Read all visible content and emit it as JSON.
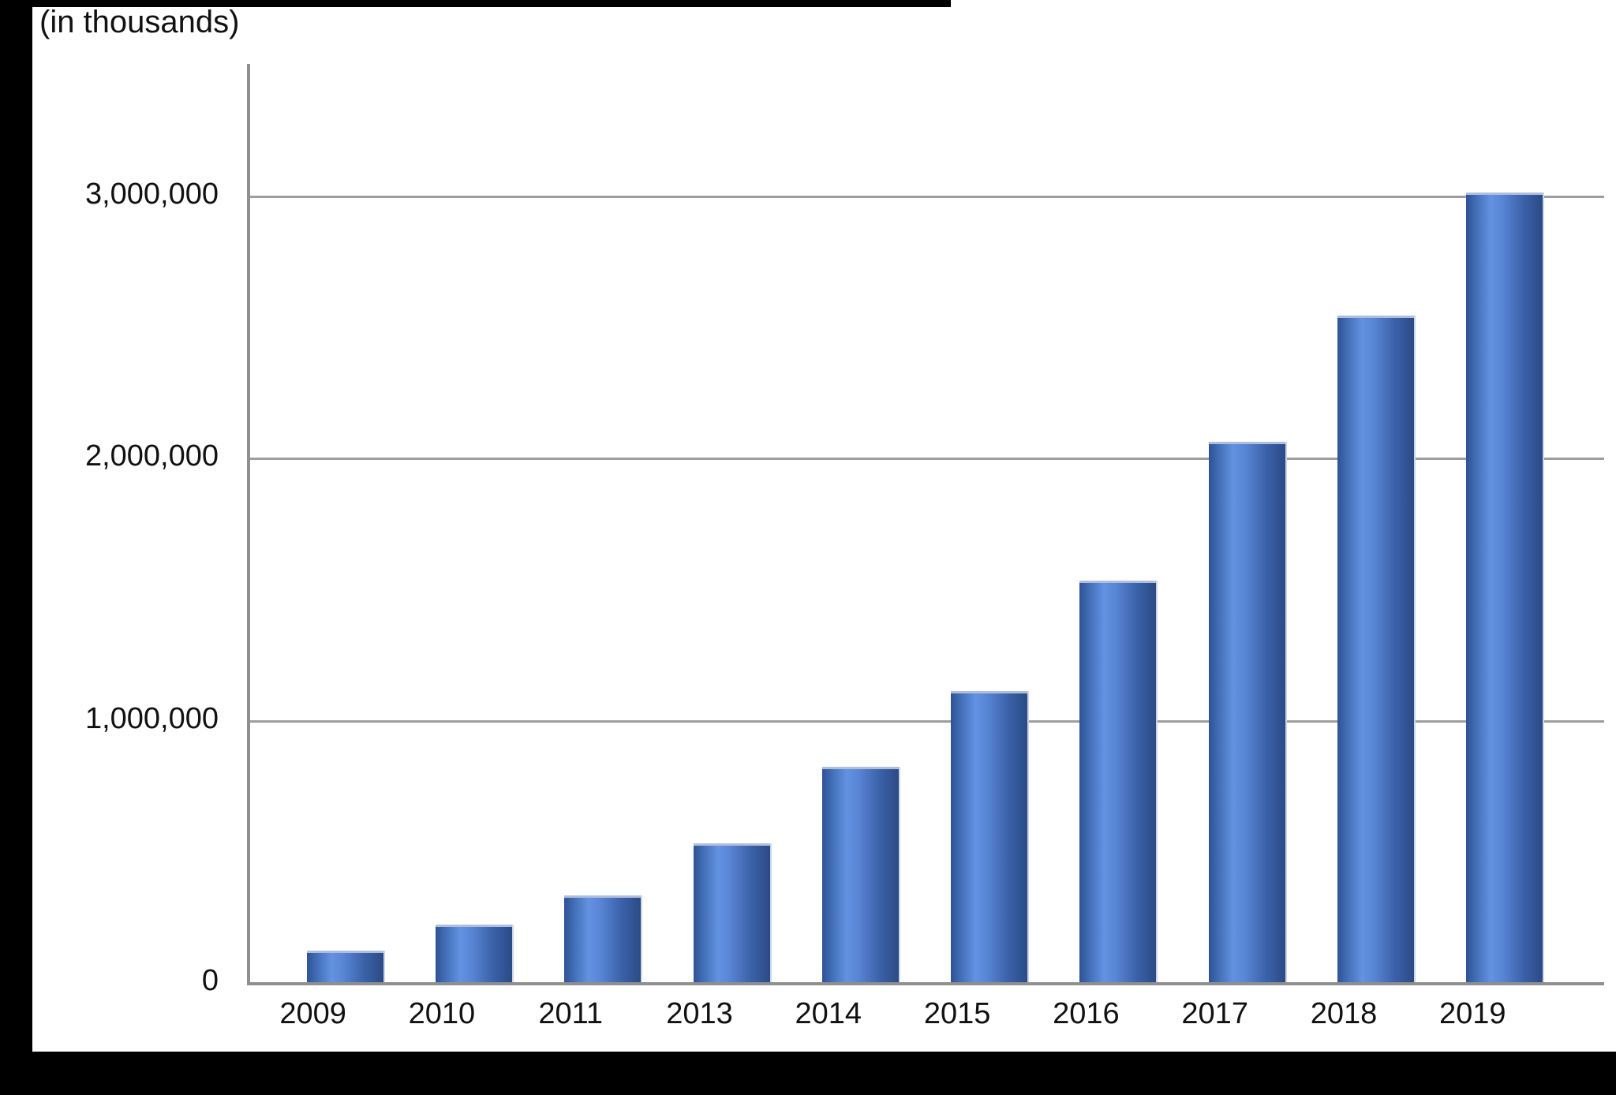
{
  "frame": {
    "left_matte": "black",
    "bottom_matte": "black",
    "top_matte": "black"
  },
  "chart_data": {
    "type": "bar",
    "title": "(in thousands)",
    "xlabel": "",
    "ylabel": "(in thousands)",
    "categories": [
      "2009",
      "2010",
      "2011",
      "2013",
      "2014",
      "2015",
      "2016",
      "2017",
      "2018",
      "2019"
    ],
    "values": [
      120000,
      220000,
      330000,
      530000,
      820000,
      1110000,
      1530000,
      2060000,
      2540000,
      3010000
    ],
    "ylim": [
      0,
      3500000
    ],
    "yticks": [
      {
        "value": 0,
        "label": "0"
      },
      {
        "value": 1000000,
        "label": "1,000,000"
      },
      {
        "value": 2000000,
        "label": "2,000,000"
      },
      {
        "value": 3000000,
        "label": "3,000,000"
      }
    ],
    "grid": true,
    "legend": false,
    "series_name": "value (in thousands)"
  },
  "colors": {
    "bar_gradient": [
      "#2e5294",
      "#416cb5",
      "#6392e2",
      "#5884d4",
      "#3a62a9",
      "#2b4a86"
    ],
    "bar_gradient_stops": [
      0,
      12,
      32,
      48,
      75,
      100
    ],
    "bar_top_edge": "#b0bedd",
    "axis_line": "#8f8f8f",
    "gridline": "#9e9e9e",
    "text": "#111111",
    "matte": "#000000",
    "background": "#ffffff"
  }
}
